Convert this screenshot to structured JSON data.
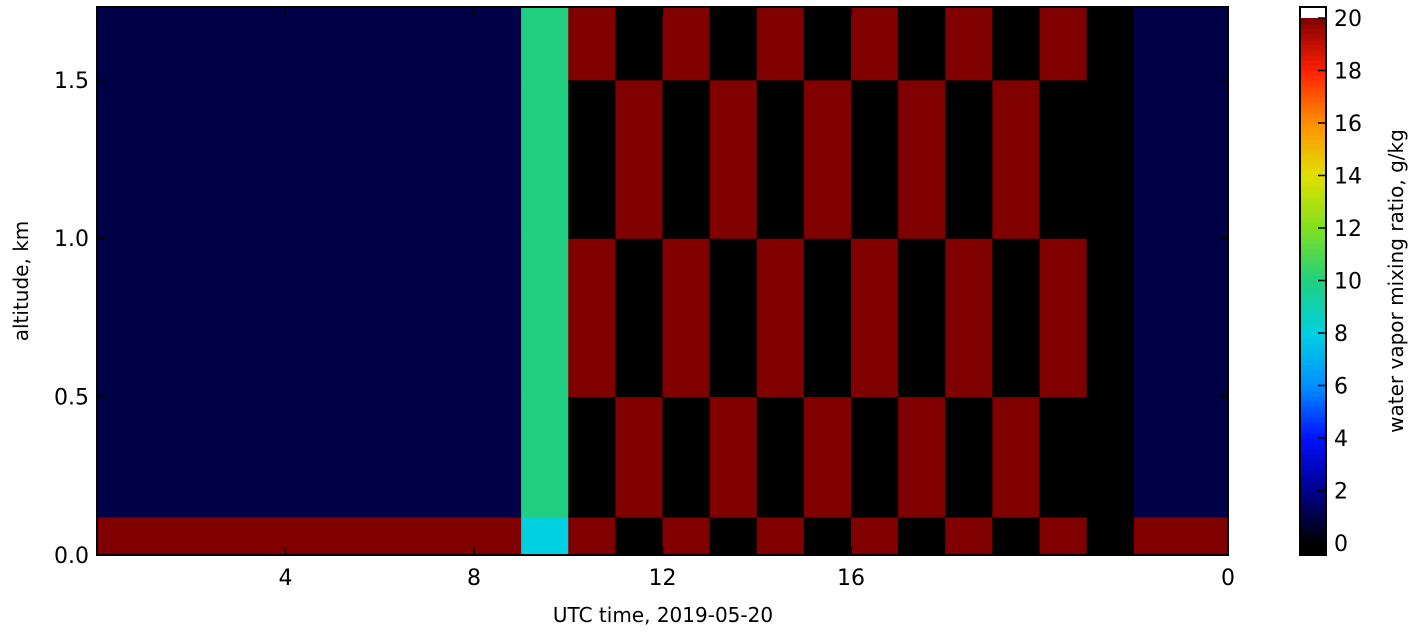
{
  "chart_data": {
    "type": "heatmap",
    "xlabel": "UTC time,  2019-05-20",
    "ylabel": "altitude, km",
    "colorbar_label": "water vapor mixing ratio, g/kg",
    "x_edges": [
      0,
      1,
      2,
      3,
      4,
      5,
      6,
      7,
      8,
      9,
      10,
      11,
      12,
      13,
      14,
      15,
      16,
      17,
      18,
      19,
      20,
      21,
      22,
      23,
      24
    ],
    "y_edges": [
      0,
      0.12,
      0.5,
      1.0,
      1.5,
      1.73
    ],
    "z": [
      [
        20,
        20,
        20,
        20,
        20,
        20,
        20,
        20,
        20,
        8,
        20,
        0,
        20,
        0,
        20,
        0,
        20,
        0,
        20,
        0,
        20,
        0,
        20,
        20
      ],
      [
        1,
        1,
        1,
        1,
        1,
        1,
        1,
        1,
        1,
        10,
        0,
        20,
        0,
        20,
        0,
        20,
        0,
        20,
        0,
        20,
        0,
        0,
        1,
        1
      ],
      [
        1,
        1,
        1,
        1,
        1,
        1,
        1,
        1,
        1,
        10,
        20,
        0,
        20,
        0,
        20,
        0,
        20,
        0,
        20,
        0,
        20,
        0,
        1,
        1
      ],
      [
        1,
        1,
        1,
        1,
        1,
        1,
        1,
        1,
        1,
        10,
        0,
        20,
        0,
        20,
        0,
        20,
        0,
        20,
        0,
        20,
        0,
        0,
        1,
        1
      ],
      [
        1,
        1,
        1,
        1,
        1,
        1,
        1,
        1,
        1,
        10,
        20,
        0,
        20,
        0,
        20,
        0,
        20,
        0,
        20,
        0,
        20,
        0,
        1,
        1
      ]
    ],
    "xlim": [
      0,
      24
    ],
    "xticks": [
      4,
      8,
      12,
      16,
      {
        "value": 24,
        "label": "0"
      }
    ],
    "ylim": [
      0,
      1.73
    ],
    "yticks": [
      {
        "value": 0,
        "label": "0.0"
      },
      {
        "value": 0.5,
        "label": "0.5"
      },
      {
        "value": 1.0,
        "label": "1.0"
      },
      {
        "value": 1.5,
        "label": "1.5"
      }
    ],
    "clim": [
      0,
      20
    ],
    "cticks": [
      0,
      2,
      4,
      6,
      8,
      10,
      12,
      14,
      16,
      18,
      20
    ],
    "colormap": [
      "#000000",
      "#00008b",
      "#0010ff",
      "#0090ff",
      "#00d0e0",
      "#20d080",
      "#80e020",
      "#e0e000",
      "#ff9000",
      "#ff2000",
      "#800000"
    ],
    "under_color": "#000000",
    "over_color": "#ffffff"
  }
}
